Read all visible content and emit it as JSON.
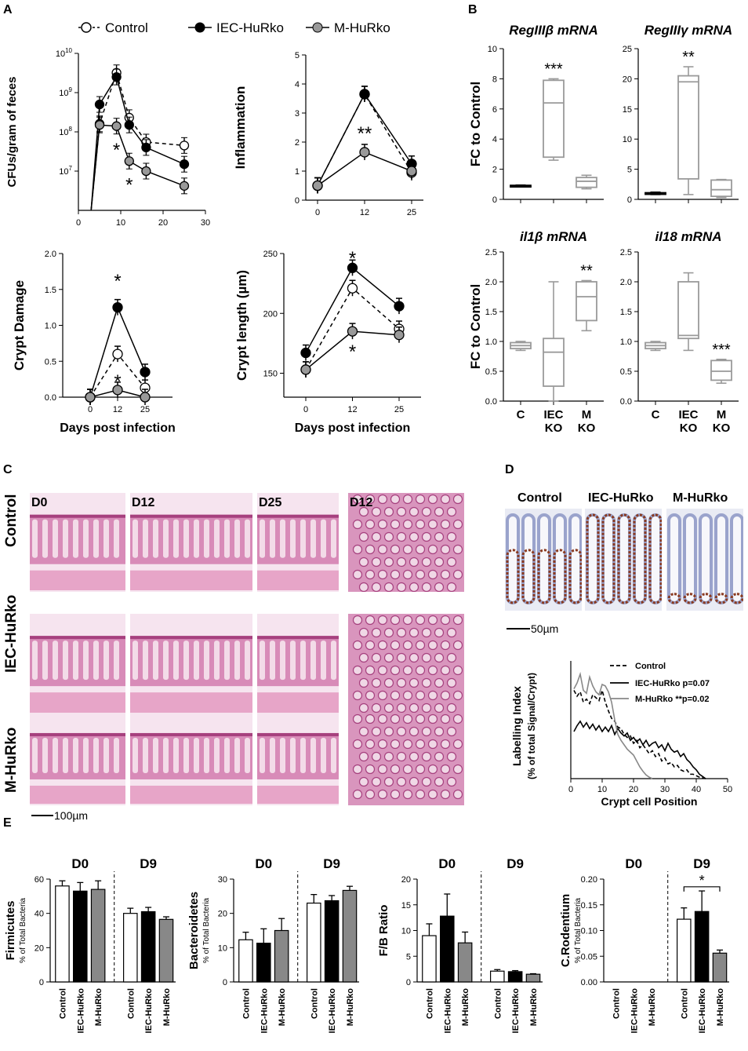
{
  "panel_letters": {
    "A": "A",
    "B": "B",
    "C": "C",
    "D": "D",
    "E": "E"
  },
  "colors": {
    "control": "#ffffff",
    "iec": "#000000",
    "m": "#999999",
    "box": "#9a9a9a",
    "he_pink": "#d88bb8",
    "he_dark": "#a6407e",
    "ihc_blue": "#9aa3cc",
    "ihc_brown": "#8a3a20"
  },
  "legend_a": {
    "control": "Control",
    "iec": "IEC-HuRko",
    "m": "M-HuRko"
  },
  "panel_c": {
    "cols": [
      "D0",
      "D12",
      "D25",
      "D12"
    ],
    "rows": [
      "Control",
      "IEC-HuRko",
      "M-HuRko"
    ],
    "scale": "100µm"
  },
  "panel_d": {
    "cols": [
      "Control",
      "IEC-HuRko",
      "M-HuRko"
    ],
    "scale": "50µm"
  },
  "chart_data": [
    {
      "id": "cfu",
      "type": "line",
      "ylabel": "CFUs/gram of feces",
      "xlabel": "",
      "ylog": true,
      "ylim": [
        1000000,
        10000000000
      ],
      "xlim": [
        0,
        30
      ],
      "xticks": [
        0,
        10,
        20,
        30
      ],
      "series": [
        {
          "name": "Control",
          "x": [
            3,
            5,
            9,
            12,
            16,
            25
          ],
          "y": [
            1000000,
            160000000,
            3200000000,
            230000000,
            55000000,
            45000000
          ]
        },
        {
          "name": "IEC-HuRko",
          "x": [
            3,
            5,
            9,
            12,
            16,
            25
          ],
          "y": [
            1000000,
            500000000,
            2500000000,
            150000000,
            40000000,
            15000000
          ]
        },
        {
          "name": "M-HuRko",
          "x": [
            3,
            5,
            9,
            12,
            16,
            25
          ],
          "y": [
            1000000,
            150000000,
            140000000,
            18000000,
            10000000,
            4200000
          ]
        }
      ],
      "stars": [
        {
          "x": 9,
          "text": "*",
          "at": 35000000
        },
        {
          "x": 12,
          "text": "*",
          "at": 4500000
        }
      ]
    },
    {
      "id": "inflammation",
      "type": "line",
      "ylabel": "Inflammation",
      "xlabel": "",
      "categories": [
        "0",
        "12",
        "25"
      ],
      "ylim": [
        0,
        5
      ],
      "series": [
        {
          "name": "Control",
          "values": [
            0.5,
            3.65,
            0.95
          ]
        },
        {
          "name": "IEC-HuRko",
          "values": [
            0.5,
            3.65,
            1.25
          ]
        },
        {
          "name": "M-HuRko",
          "values": [
            0.5,
            1.65,
            1.0
          ]
        }
      ],
      "stars": [
        {
          "i": 1,
          "text": "**",
          "at": 2.3
        }
      ]
    },
    {
      "id": "crypt_damage",
      "type": "line",
      "ylabel": "Crypt Damage",
      "xlabel": "Days post infection",
      "categories": [
        "0",
        "12",
        "25"
      ],
      "ylim": [
        0,
        2
      ],
      "series": [
        {
          "name": "Control",
          "values": [
            0,
            0.6,
            0.13
          ]
        },
        {
          "name": "IEC-HuRko",
          "values": [
            0,
            1.25,
            0.35
          ]
        },
        {
          "name": "M-HuRko",
          "values": [
            0,
            0.1,
            0.0
          ]
        }
      ],
      "stars": [
        {
          "i": 1,
          "text": "*",
          "at": 1.62
        },
        {
          "i": 1,
          "text": "*",
          "at": 0.22
        }
      ]
    },
    {
      "id": "crypt_length",
      "type": "line",
      "ylabel": "Crypt length (µm)",
      "xlabel": "Days post infection",
      "categories": [
        "0",
        "12",
        "25"
      ],
      "ylim": [
        130,
        250
      ],
      "yticks": [
        150,
        200,
        250
      ],
      "series": [
        {
          "name": "Control",
          "values": [
            153,
            221,
            187
          ]
        },
        {
          "name": "IEC-HuRko",
          "values": [
            167,
            238,
            206
          ]
        },
        {
          "name": "M-HuRko",
          "values": [
            153,
            185,
            182
          ]
        }
      ],
      "stars": [
        {
          "i": 1,
          "text": "*",
          "at": 246
        },
        {
          "i": 1,
          "text": "*",
          "at": 168
        }
      ]
    },
    {
      "id": "regiiib",
      "type": "box",
      "title": "RegIIIβ mRNA",
      "ylabel": "FC to Control",
      "categories": [
        "C",
        "IEC\nKO",
        "M\nKO"
      ],
      "ylim": [
        0,
        10
      ],
      "yticks": [
        0,
        2,
        4,
        6,
        8,
        10
      ],
      "show_xlabels": false,
      "boxes": [
        {
          "min": 0.85,
          "q1": 0.88,
          "med": 0.9,
          "q3": 0.93,
          "max": 0.95,
          "color": "#000000"
        },
        {
          "min": 2.6,
          "q1": 2.8,
          "med": 6.4,
          "q3": 7.9,
          "max": 8.0,
          "color": "#9a9a9a"
        },
        {
          "min": 0.7,
          "q1": 0.8,
          "med": 1.2,
          "q3": 1.45,
          "max": 1.6,
          "color": "#9a9a9a"
        }
      ],
      "stars": [
        {
          "i": 1,
          "text": "***"
        }
      ]
    },
    {
      "id": "regiiig",
      "type": "box",
      "title": "RegIIIγ mRNA",
      "ylabel": "",
      "categories": [
        "C",
        "IEC\nKO",
        "M\nKO"
      ],
      "ylim": [
        0,
        25
      ],
      "yticks": [
        0,
        5,
        10,
        15,
        20,
        25
      ],
      "show_xlabels": false,
      "boxes": [
        {
          "min": 0.8,
          "q1": 0.9,
          "med": 1.0,
          "q3": 1.1,
          "max": 1.2,
          "color": "#000000"
        },
        {
          "min": 0.8,
          "q1": 3.4,
          "med": 19.5,
          "q3": 20.5,
          "max": 22.0,
          "color": "#9a9a9a"
        },
        {
          "min": 0.3,
          "q1": 0.5,
          "med": 1.6,
          "q3": 3.2,
          "max": 3.3,
          "color": "#9a9a9a"
        }
      ],
      "stars": [
        {
          "i": 1,
          "text": "**"
        }
      ]
    },
    {
      "id": "il1b",
      "type": "box",
      "title": "il1β mRNA",
      "ylabel": "FC to Control",
      "categories": [
        "C",
        "IEC\nKO",
        "M\nKO"
      ],
      "ylim": [
        0,
        2.5
      ],
      "yticks": [
        0.0,
        0.5,
        1.0,
        1.5,
        2.0,
        2.5
      ],
      "show_xlabels": true,
      "boxes": [
        {
          "min": 0.85,
          "q1": 0.88,
          "med": 0.93,
          "q3": 0.98,
          "max": 1.0,
          "color": "#9a9a9a"
        },
        {
          "min": 0.0,
          "q1": 0.25,
          "med": 0.82,
          "q3": 1.05,
          "max": 2.0,
          "color": "#9a9a9a"
        },
        {
          "min": 1.18,
          "q1": 1.35,
          "med": 1.75,
          "q3": 2.0,
          "max": 2.02,
          "color": "#9a9a9a"
        }
      ],
      "stars": [
        {
          "i": 2,
          "text": "**"
        }
      ]
    },
    {
      "id": "il18",
      "type": "box",
      "title": "il18 mRNA",
      "ylabel": "",
      "categories": [
        "C",
        "IEC\nKO",
        "M\nKO"
      ],
      "ylim": [
        0,
        2.5
      ],
      "yticks": [
        0.0,
        0.5,
        1.0,
        1.5,
        2.0,
        2.5
      ],
      "show_xlabels": true,
      "boxes": [
        {
          "min": 0.85,
          "q1": 0.88,
          "med": 0.93,
          "q3": 0.98,
          "max": 1.0,
          "color": "#9a9a9a"
        },
        {
          "min": 0.85,
          "q1": 1.05,
          "med": 1.1,
          "q3": 2.0,
          "max": 2.15,
          "color": "#9a9a9a"
        },
        {
          "min": 0.3,
          "q1": 0.35,
          "med": 0.5,
          "q3": 0.68,
          "max": 0.7,
          "color": "#9a9a9a"
        }
      ],
      "stars": [
        {
          "i": 2,
          "text": "***"
        }
      ]
    },
    {
      "id": "labelling",
      "type": "line",
      "ylabel": "Labelling Index",
      "ylabel2": "(% of total Signal/Crypt)",
      "xlabel": "Crypt cell Position",
      "xlim": [
        0,
        50
      ],
      "xticks": [
        0,
        10,
        20,
        30,
        40,
        50
      ],
      "ylim": [
        0,
        8
      ],
      "legend": [
        "Control",
        "IEC-HuRko p=0.07",
        "M-HuRko **p=0.02"
      ],
      "series": [
        {
          "name": "Control",
          "dash": true,
          "x": [
            1,
            2,
            3,
            4,
            5,
            6,
            7,
            8,
            9,
            10,
            11,
            12,
            13,
            14,
            15,
            16,
            17,
            18,
            19,
            20,
            21,
            22,
            23,
            24,
            25,
            26,
            27,
            28,
            29,
            30,
            31,
            32,
            33,
            34,
            35,
            36,
            37,
            38,
            39,
            40,
            41,
            42,
            43
          ],
          "y": [
            6.0,
            5.6,
            5.9,
            5.2,
            5.4,
            5.1,
            5.7,
            5.5,
            5.3,
            6.0,
            5.2,
            4.6,
            4.1,
            3.9,
            3.5,
            3.4,
            3.0,
            2.8,
            2.9,
            2.4,
            2.6,
            2.1,
            2.3,
            2.0,
            1.7,
            1.9,
            1.5,
            1.7,
            1.2,
            1.4,
            1.0,
            1.1,
            0.8,
            0.9,
            0.6,
            0.5,
            0.6,
            0.3,
            0.3,
            0.2,
            0.1,
            0.05,
            0.0
          ]
        },
        {
          "name": "IEC-HuRko",
          "dash": false,
          "x": [
            1,
            2,
            3,
            4,
            5,
            6,
            7,
            8,
            9,
            10,
            11,
            12,
            13,
            14,
            15,
            16,
            17,
            18,
            19,
            20,
            21,
            22,
            23,
            24,
            25,
            26,
            27,
            28,
            29,
            30,
            31,
            32,
            33,
            34,
            35,
            36,
            37,
            38,
            39,
            40,
            41,
            42,
            43
          ],
          "y": [
            3.2,
            3.6,
            3.9,
            3.5,
            3.8,
            3.4,
            3.7,
            3.3,
            3.6,
            3.2,
            3.5,
            3.2,
            3.6,
            3.0,
            3.4,
            3.1,
            2.9,
            3.1,
            2.6,
            2.8,
            2.5,
            2.7,
            2.3,
            2.6,
            2.2,
            2.4,
            2.5,
            2.1,
            2.3,
            1.9,
            2.4,
            2.0,
            1.8,
            1.9,
            1.5,
            1.7,
            1.3,
            1.1,
            0.8,
            0.6,
            0.3,
            0.15,
            0.0
          ]
        },
        {
          "name": "M-HuRko",
          "dash": false,
          "x": [
            1,
            2,
            3,
            4,
            5,
            6,
            7,
            8,
            9,
            10,
            11,
            12,
            13,
            14,
            15,
            16,
            17,
            18,
            19,
            20,
            21,
            22,
            23,
            24,
            25,
            26
          ],
          "y": [
            6.1,
            6.5,
            7.1,
            6.0,
            5.8,
            6.9,
            6.3,
            5.9,
            5.7,
            6.4,
            6.3,
            5.9,
            5.2,
            4.0,
            3.0,
            2.6,
            2.3,
            2.0,
            1.8,
            1.6,
            1.2,
            0.8,
            0.5,
            0.25,
            0.1,
            0.0
          ]
        }
      ]
    },
    {
      "id": "firmicutes",
      "type": "bar",
      "ylabel": "Firmicutes",
      "ylabel2": "% of Total Bacteria",
      "groups": [
        "D0",
        "D9"
      ],
      "categories": [
        "Control",
        "IEC-HuRko",
        "M-HuRko",
        "Control",
        "IEC-HuRko",
        "M-HuRko"
      ],
      "values": [
        56,
        53,
        54,
        40,
        41,
        36.5
      ],
      "errors": [
        3,
        5,
        5,
        3,
        2.5,
        1.5
      ],
      "ylim": [
        0,
        60
      ],
      "yticks": [
        0,
        20,
        40,
        60
      ]
    },
    {
      "id": "bacteroidetes",
      "type": "bar",
      "ylabel": "Bacteroidetes",
      "ylabel2": "% of Total Bacteria",
      "groups": [
        "D0",
        "D9"
      ],
      "categories": [
        "Control",
        "IEC-HuRko",
        "M-HuRko",
        "Control",
        "IEC-HuRko",
        "M-HuRko"
      ],
      "values": [
        12.3,
        11.3,
        15,
        23,
        23.7,
        26.7
      ],
      "errors": [
        2.2,
        4.2,
        3.5,
        2.5,
        1.5,
        1.2
      ],
      "ylim": [
        0,
        30
      ],
      "yticks": [
        0,
        10,
        20,
        30
      ]
    },
    {
      "id": "fb_ratio",
      "type": "bar",
      "ylabel": "F/B Ratio",
      "ylabel2": "",
      "groups": [
        "D0",
        "D9"
      ],
      "categories": [
        "Control",
        "IEC-HuRko",
        "M-HuRko",
        "Control",
        "IEC-HuRko",
        "M-HuRko"
      ],
      "values": [
        9,
        12.8,
        7.6,
        2.1,
        2.0,
        1.5
      ],
      "errors": [
        2.3,
        4.3,
        2.1,
        0.3,
        0.2,
        0.1
      ],
      "ylim": [
        0,
        20
      ],
      "yticks": [
        0,
        5,
        10,
        15,
        20
      ]
    },
    {
      "id": "crodentium",
      "type": "bar",
      "ylabel": "C.Rodentium",
      "ylabel2": "% of Total Bacteria",
      "groups": [
        "D0",
        "D9"
      ],
      "categories": [
        "Control",
        "IEC-HuRko",
        "M-HuRko",
        "Control",
        "IEC-HuRko",
        "M-HuRko"
      ],
      "values": [
        0,
        0,
        0,
        0.122,
        0.137,
        0.056
      ],
      "errors": [
        0,
        0,
        0,
        0.022,
        0.04,
        0.006
      ],
      "ylim": [
        0,
        0.2
      ],
      "yticks": [
        "0.00",
        "0.05",
        "0.10",
        "0.15",
        "0.20"
      ],
      "sig": "*"
    }
  ]
}
